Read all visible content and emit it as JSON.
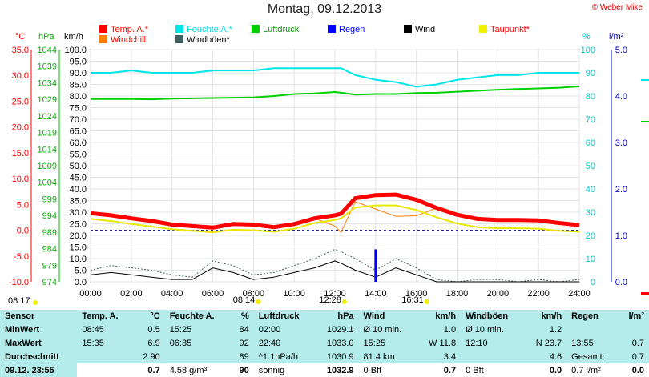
{
  "title": "Montag, 09.12.2013",
  "copyright": "© Weber Mike",
  "axis_units": {
    "temp": "°C",
    "pressure": "hPa",
    "wind": "km/h",
    "humidity": "%",
    "rain": "l/m²"
  },
  "legend": [
    {
      "label": "Temp. A.*",
      "color": "#ff0000"
    },
    {
      "label": "Feuchte A.*",
      "color": "#00e6e6"
    },
    {
      "label": "Luftdruck",
      "color": "#00d000"
    },
    {
      "label": "Regen",
      "color": "#0000ff"
    },
    {
      "label": "Wind",
      "color": "#000000"
    },
    {
      "label": "Taupunkt*",
      "color": "#f0f000"
    },
    {
      "label": "Windchill",
      "color": "#ff7f00"
    },
    {
      "label": "Windböen*",
      "color": "#406060"
    }
  ],
  "chart_data": {
    "type": "line",
    "title": "Montag, 09.12.2013",
    "x_ticks": [
      "00:00",
      "02:00",
      "04:00",
      "06:00",
      "08:00",
      "10:00",
      "12:00",
      "14:00",
      "16:00",
      "18:00",
      "20:00",
      "22:00",
      "24:00"
    ],
    "y_left_temp": {
      "label": "°C",
      "ticks": [
        "35.0",
        "30.0",
        "25.0",
        "20.0",
        "15.0",
        "10.0",
        "5.0",
        "0.0",
        "-5.0",
        "-10.0"
      ],
      "range": [
        -10,
        35
      ]
    },
    "y_left_pressure": {
      "label": "hPa",
      "ticks": [
        "1044",
        "1039",
        "1034",
        "1029",
        "1024",
        "1019",
        "1014",
        "1009",
        "1004",
        "999",
        "994",
        "989",
        "984",
        "979",
        "974"
      ],
      "range": [
        974,
        1044
      ]
    },
    "y_left_wind": {
      "label": "km/h",
      "ticks": [
        "100.0",
        "95.0",
        "90.0",
        "85.0",
        "80.0",
        "75.0",
        "70.0",
        "65.0",
        "60.0",
        "55.0",
        "50.0",
        "45.0",
        "40.0",
        "35.0",
        "30.0",
        "25.0",
        "20.0",
        "15.0",
        "10.0",
        "5.0",
        "0.0"
      ],
      "range": [
        0,
        100
      ]
    },
    "y_right_humidity": {
      "label": "%",
      "ticks": [
        "100",
        "90",
        "80",
        "70",
        "60",
        "50",
        "40",
        "30",
        "20",
        "10",
        "0"
      ],
      "range": [
        0,
        100
      ]
    },
    "y_right_rain": {
      "label": "l/m²",
      "ticks": [
        "5.0",
        "4.0",
        "3.0",
        "2.0",
        "1.0",
        "0.0"
      ],
      "range": [
        0,
        5
      ]
    },
    "x_hours": [
      0,
      1,
      2,
      3,
      4,
      5,
      6,
      7,
      8,
      9,
      10,
      11,
      12,
      12.3,
      13,
      14,
      15,
      16,
      17,
      18,
      19,
      20,
      21,
      22,
      23,
      24
    ],
    "series": [
      {
        "name": "Temp. A.*",
        "color": "#ff0000",
        "axis": "temp",
        "values": [
          3.3,
          2.9,
          2.3,
          1.8,
          1.1,
          0.8,
          0.5,
          1.2,
          1.1,
          0.6,
          1.2,
          2.3,
          2.9,
          3.2,
          6.2,
          6.8,
          6.9,
          5.9,
          4.3,
          3.0,
          2.2,
          2.0,
          2.0,
          1.9,
          1.4,
          1.0
        ]
      },
      {
        "name": "Taupunkt*",
        "color": "#e8e800",
        "axis": "temp",
        "values": [
          2.2,
          1.8,
          1.2,
          0.7,
          0.2,
          -0.1,
          -0.4,
          0.1,
          0.0,
          -0.3,
          0.3,
          1.4,
          2.0,
          2.3,
          4.4,
          4.8,
          4.8,
          3.9,
          2.5,
          1.3,
          0.6,
          0.4,
          0.4,
          0.3,
          -0.1,
          -0.3
        ]
      },
      {
        "name": "Windchill",
        "color": "#ff7f00",
        "axis": "temp",
        "values": [
          3.3,
          2.9,
          2.3,
          1.8,
          1.1,
          0.8,
          0.5,
          1.2,
          1.1,
          0.6,
          1.2,
          2.3,
          0.8,
          -0.4,
          5.5,
          4.1,
          2.7,
          2.8,
          4.3,
          3.0,
          2.2,
          2.0,
          2.0,
          1.9,
          1.4,
          1.0
        ]
      },
      {
        "name": "Feuchte A.*",
        "color": "#00e6e6",
        "axis": "humidity",
        "values": [
          90,
          90,
          91,
          90,
          90,
          90,
          91,
          91,
          91,
          92,
          92,
          92,
          92,
          92,
          89,
          87,
          86,
          84,
          85,
          87,
          88,
          89,
          89,
          90,
          90,
          90
        ]
      },
      {
        "name": "Luftdruck",
        "color": "#00d000",
        "axis": "pressure",
        "values": [
          1029.1,
          1029.1,
          1029.1,
          1029.0,
          1029.2,
          1029.3,
          1029.4,
          1029.5,
          1029.6,
          1030.0,
          1030.6,
          1030.8,
          1031.2,
          1031.0,
          1030.4,
          1030.6,
          1030.6,
          1030.9,
          1031.0,
          1031.3,
          1031.6,
          1031.9,
          1032.1,
          1032.3,
          1032.5,
          1032.9
        ]
      },
      {
        "name": "Wind",
        "color": "#000000",
        "axis": "wind",
        "values": [
          3,
          4,
          3,
          2,
          1,
          1,
          6,
          4,
          1,
          2,
          4,
          6,
          9,
          8,
          5,
          2,
          6,
          3,
          0,
          0,
          0,
          0,
          0,
          0,
          0,
          0
        ]
      },
      {
        "name": "Windböen*",
        "color": "#406060",
        "axis": "wind",
        "values": [
          5,
          7,
          6,
          5,
          3,
          2,
          9,
          7,
          3,
          4,
          7,
          10,
          14,
          13,
          10,
          5,
          10,
          6,
          1,
          0,
          1,
          1,
          0,
          1,
          0,
          1
        ]
      }
    ],
    "rain_bar": {
      "time": "14:00",
      "value_mm": 0.7
    },
    "markers_below": [
      "08:17",
      "08:14",
      "12:28",
      "16:31"
    ]
  },
  "stats": {
    "headers": [
      "Sensor",
      "Temp. A.",
      "°C",
      "Feuchte A.",
      "%",
      "Luftdruck",
      "hPa",
      "Wind",
      "km/h",
      "Windböen",
      "km/h",
      "Regen",
      "l/m²"
    ],
    "rows": [
      [
        "MinWert",
        "08:45",
        "0.5",
        "15:25",
        "84",
        "02:00",
        "1029.1",
        "Ø 10 min.",
        "1.0",
        "Ø 10 min.",
        "1.2",
        "",
        ""
      ],
      [
        "MaxWert",
        "15:35",
        "6.9",
        "06:35",
        "92",
        "22:40",
        "1033.0",
        "15:25",
        "W 11.8",
        "12:10",
        "N 23.7",
        "13:55",
        "0.7"
      ],
      [
        "Durchschnitt",
        "",
        "2.90",
        "",
        "89",
        "^1.1hPa/h",
        "1030.9",
        "81.4 km",
        "3.4",
        "",
        "4.6",
        "Gesamt:",
        "0.7"
      ],
      [
        "09.12. 23:55",
        "",
        "0.7",
        "4.58 g/m³",
        "90",
        "sonnig",
        "1032.9",
        "0 Bft",
        "0.7",
        "0 Bft",
        "0.0",
        "0.7 l/m²",
        "0.0"
      ]
    ]
  }
}
